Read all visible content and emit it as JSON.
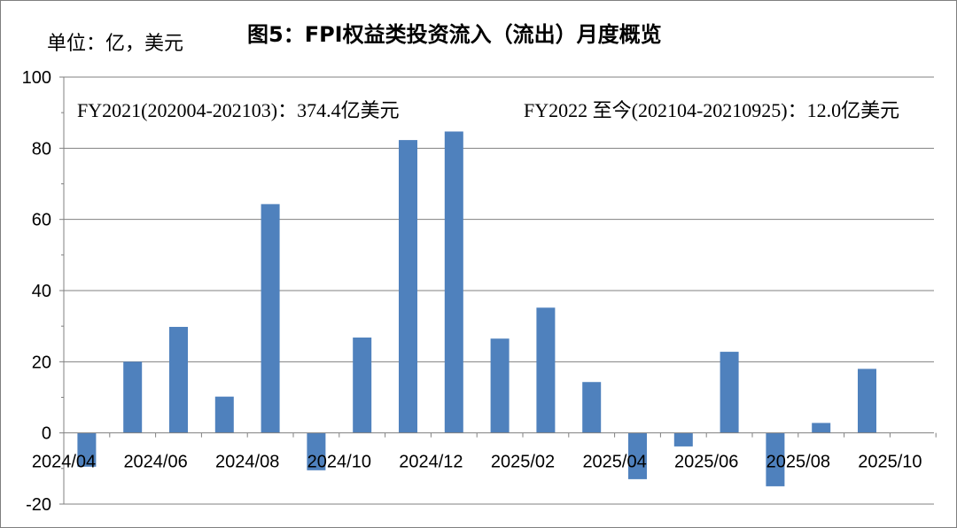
{
  "chart_data": {
    "type": "bar",
    "title": "图5：FPI权益类投资流入（流出）月度概览",
    "unit_label": "单位：亿，美元",
    "annotations": [
      "FY2021(202004-202103)：374.4亿美元",
      "FY2022 至今(202104-20210925)：12.0亿美元"
    ],
    "x_tick_labels": [
      "2024/04",
      "2024/06",
      "2024/08",
      "2024/10",
      "2024/12",
      "2025/02",
      "2025/04",
      "2025/06",
      "2025/08",
      "2025/10"
    ],
    "categories": [
      "2024/04",
      "2024/05",
      "2024/06",
      "2024/07",
      "2024/08",
      "2024/09",
      "2024/10",
      "2024/11",
      "2024/12",
      "2025/01",
      "2025/02",
      "2025/03",
      "2025/04",
      "2025/05",
      "2025/06",
      "2025/07",
      "2025/08",
      "2025/09",
      "2025/10"
    ],
    "values": [
      -9.5,
      20,
      29.8,
      10.2,
      64.3,
      -10.5,
      26.8,
      82.3,
      84.7,
      26.5,
      35.2,
      14.3,
      -13.0,
      -3.8,
      22.8,
      -15.0,
      2.8,
      18.0,
      0
    ],
    "ylim": [
      -20,
      100
    ],
    "yticks": [
      -20,
      0,
      20,
      40,
      60,
      80,
      100
    ],
    "grid": true,
    "bar_color": "#4f81bd"
  }
}
